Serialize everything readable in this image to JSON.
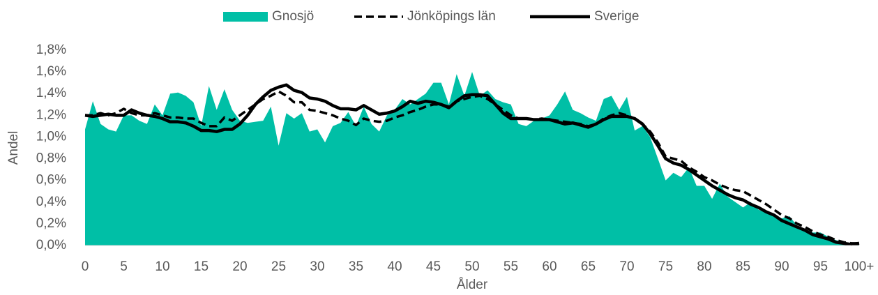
{
  "chart_data": {
    "type": "line",
    "x_label": "Ålder",
    "y_label": "Andel",
    "categories": [
      "0",
      null,
      null,
      null,
      null,
      "5",
      null,
      null,
      null,
      null,
      "10",
      null,
      null,
      null,
      null,
      "15",
      null,
      null,
      null,
      null,
      "20",
      null,
      null,
      null,
      null,
      "25",
      null,
      null,
      null,
      null,
      "30",
      null,
      null,
      null,
      null,
      "35",
      null,
      null,
      null,
      null,
      "40",
      null,
      null,
      null,
      null,
      "45",
      null,
      null,
      null,
      null,
      "50",
      null,
      null,
      null,
      null,
      "55",
      null,
      null,
      null,
      null,
      "60",
      null,
      null,
      null,
      null,
      "65",
      null,
      null,
      null,
      null,
      "70",
      null,
      null,
      null,
      null,
      "75",
      null,
      null,
      null,
      null,
      "80",
      null,
      null,
      null,
      null,
      "85",
      null,
      null,
      null,
      null,
      "90",
      null,
      null,
      null,
      null,
      "95",
      null,
      null,
      null,
      null,
      "100+"
    ],
    "series": [
      {
        "name": "Gnosjö",
        "type": "area",
        "color": "#00bfa6",
        "values": [
          1.07,
          1.33,
          1.12,
          1.07,
          1.05,
          1.2,
          1.2,
          1.15,
          1.12,
          1.3,
          1.2,
          1.4,
          1.41,
          1.38,
          1.32,
          1.1,
          1.47,
          1.25,
          1.44,
          1.25,
          1.15,
          1.13,
          1.14,
          1.15,
          1.28,
          0.92,
          1.22,
          1.17,
          1.22,
          1.05,
          1.07,
          0.95,
          1.1,
          1.13,
          1.23,
          1.1,
          1.28,
          1.12,
          1.05,
          1.2,
          1.25,
          1.35,
          1.3,
          1.35,
          1.4,
          1.5,
          1.5,
          1.3,
          1.58,
          1.38,
          1.6,
          1.38,
          1.43,
          1.35,
          1.32,
          1.3,
          1.12,
          1.1,
          1.15,
          1.17,
          1.2,
          1.3,
          1.42,
          1.25,
          1.22,
          1.18,
          1.15,
          1.35,
          1.38,
          1.25,
          1.37,
          1.06,
          1.1,
          1.0,
          0.8,
          0.6,
          0.67,
          0.63,
          0.72,
          0.55,
          0.55,
          0.43,
          0.57,
          0.45,
          0.4,
          0.35,
          0.4,
          0.33,
          0.3,
          0.27,
          0.25,
          0.27,
          0.18,
          0.15,
          0.12,
          0.12,
          0.08,
          0.05,
          0.03,
          0.01,
          0.02
        ]
      },
      {
        "name": "Jönköpings län",
        "type": "line",
        "dashed": true,
        "color": "#000000",
        "values": [
          1.2,
          1.2,
          1.22,
          1.2,
          1.22,
          1.26,
          1.22,
          1.2,
          1.2,
          1.22,
          1.2,
          1.18,
          1.18,
          1.17,
          1.17,
          1.13,
          1.1,
          1.1,
          1.18,
          1.15,
          1.2,
          1.25,
          1.3,
          1.35,
          1.38,
          1.42,
          1.38,
          1.32,
          1.32,
          1.25,
          1.24,
          1.22,
          1.2,
          1.17,
          1.15,
          1.11,
          1.17,
          1.15,
          1.14,
          1.15,
          1.18,
          1.2,
          1.23,
          1.25,
          1.28,
          1.3,
          1.3,
          1.28,
          1.33,
          1.35,
          1.37,
          1.38,
          1.35,
          1.3,
          1.25,
          1.2,
          1.17,
          1.17,
          1.16,
          1.17,
          1.16,
          1.15,
          1.14,
          1.13,
          1.12,
          1.1,
          1.12,
          1.17,
          1.2,
          1.22,
          1.2,
          1.17,
          1.12,
          1.05,
          0.95,
          0.82,
          0.8,
          0.78,
          0.72,
          0.68,
          0.63,
          0.6,
          0.56,
          0.53,
          0.51,
          0.5,
          0.46,
          0.42,
          0.38,
          0.33,
          0.28,
          0.25,
          0.2,
          0.17,
          0.13,
          0.1,
          0.08,
          0.05,
          0.03,
          0.02,
          0.02
        ]
      },
      {
        "name": "Sverige",
        "type": "line",
        "dashed": false,
        "color": "#000000",
        "values": [
          1.2,
          1.19,
          1.2,
          1.21,
          1.2,
          1.2,
          1.25,
          1.22,
          1.2,
          1.19,
          1.17,
          1.14,
          1.14,
          1.13,
          1.1,
          1.06,
          1.06,
          1.05,
          1.07,
          1.07,
          1.12,
          1.2,
          1.3,
          1.37,
          1.43,
          1.46,
          1.48,
          1.43,
          1.41,
          1.36,
          1.35,
          1.33,
          1.29,
          1.26,
          1.26,
          1.25,
          1.29,
          1.25,
          1.21,
          1.22,
          1.24,
          1.28,
          1.33,
          1.31,
          1.33,
          1.32,
          1.3,
          1.27,
          1.33,
          1.38,
          1.39,
          1.39,
          1.38,
          1.3,
          1.22,
          1.17,
          1.17,
          1.17,
          1.16,
          1.16,
          1.16,
          1.14,
          1.12,
          1.13,
          1.11,
          1.09,
          1.12,
          1.16,
          1.19,
          1.19,
          1.19,
          1.17,
          1.12,
          1.03,
          0.92,
          0.8,
          0.76,
          0.74,
          0.7,
          0.65,
          0.6,
          0.55,
          0.51,
          0.47,
          0.44,
          0.42,
          0.38,
          0.35,
          0.31,
          0.28,
          0.23,
          0.2,
          0.17,
          0.14,
          0.1,
          0.08,
          0.06,
          0.03,
          0.02,
          0.01,
          0.02
        ]
      }
    ],
    "ylim": [
      0,
      1.8
    ],
    "yticks": [
      {
        "value": 0,
        "label": "0,0%"
      },
      {
        "value": 0.2,
        "label": "0,2%"
      },
      {
        "value": 0.4,
        "label": "0,4%"
      },
      {
        "value": 0.6,
        "label": "0,6%"
      },
      {
        "value": 0.8,
        "label": "0,8%"
      },
      {
        "value": 1.0,
        "label": "1,0%"
      },
      {
        "value": 1.2,
        "label": "1,2%"
      },
      {
        "value": 1.4,
        "label": "1,4%"
      },
      {
        "value": 1.6,
        "label": "1,6%"
      },
      {
        "value": 1.8,
        "label": "1,8%"
      }
    ],
    "grid": false,
    "legend": "top"
  }
}
